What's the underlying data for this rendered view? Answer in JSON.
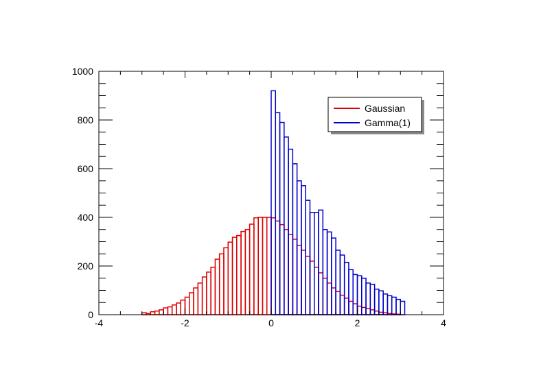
{
  "chart_data": {
    "type": "bar",
    "title": "",
    "xlabel": "",
    "ylabel": "",
    "xlim": [
      -4,
      4
    ],
    "ylim": [
      0,
      1000
    ],
    "x_ticks": [
      -4,
      -2,
      0,
      2,
      4
    ],
    "y_ticks": [
      0,
      200,
      400,
      600,
      800,
      1000
    ],
    "grid": false,
    "legend_position": "top-right",
    "bin_width": 0.1,
    "series": [
      {
        "name": "Gaussian",
        "color": "#dd0000",
        "x_start": -3.0,
        "values": [
          8,
          5,
          12,
          15,
          20,
          28,
          32,
          40,
          48,
          60,
          72,
          90,
          110,
          130,
          155,
          175,
          195,
          228,
          250,
          275,
          298,
          318,
          325,
          342,
          350,
          372,
          398,
          400,
          400,
          400,
          398,
          385,
          370,
          350,
          330,
          310,
          285,
          265,
          240,
          220,
          195,
          172,
          150,
          130,
          110,
          95,
          80,
          68,
          55,
          45,
          35,
          30,
          25,
          20,
          15,
          10,
          8,
          5,
          3,
          2
        ]
      },
      {
        "name": "Gamma(1)",
        "color": "#0000cc",
        "x_start": 0.0,
        "values": [
          920,
          830,
          790,
          730,
          680,
          620,
          550,
          530,
          470,
          420,
          420,
          430,
          350,
          340,
          315,
          265,
          245,
          215,
          185,
          165,
          160,
          150,
          130,
          125,
          105,
          98,
          85,
          78,
          72,
          63,
          55
        ]
      }
    ]
  }
}
